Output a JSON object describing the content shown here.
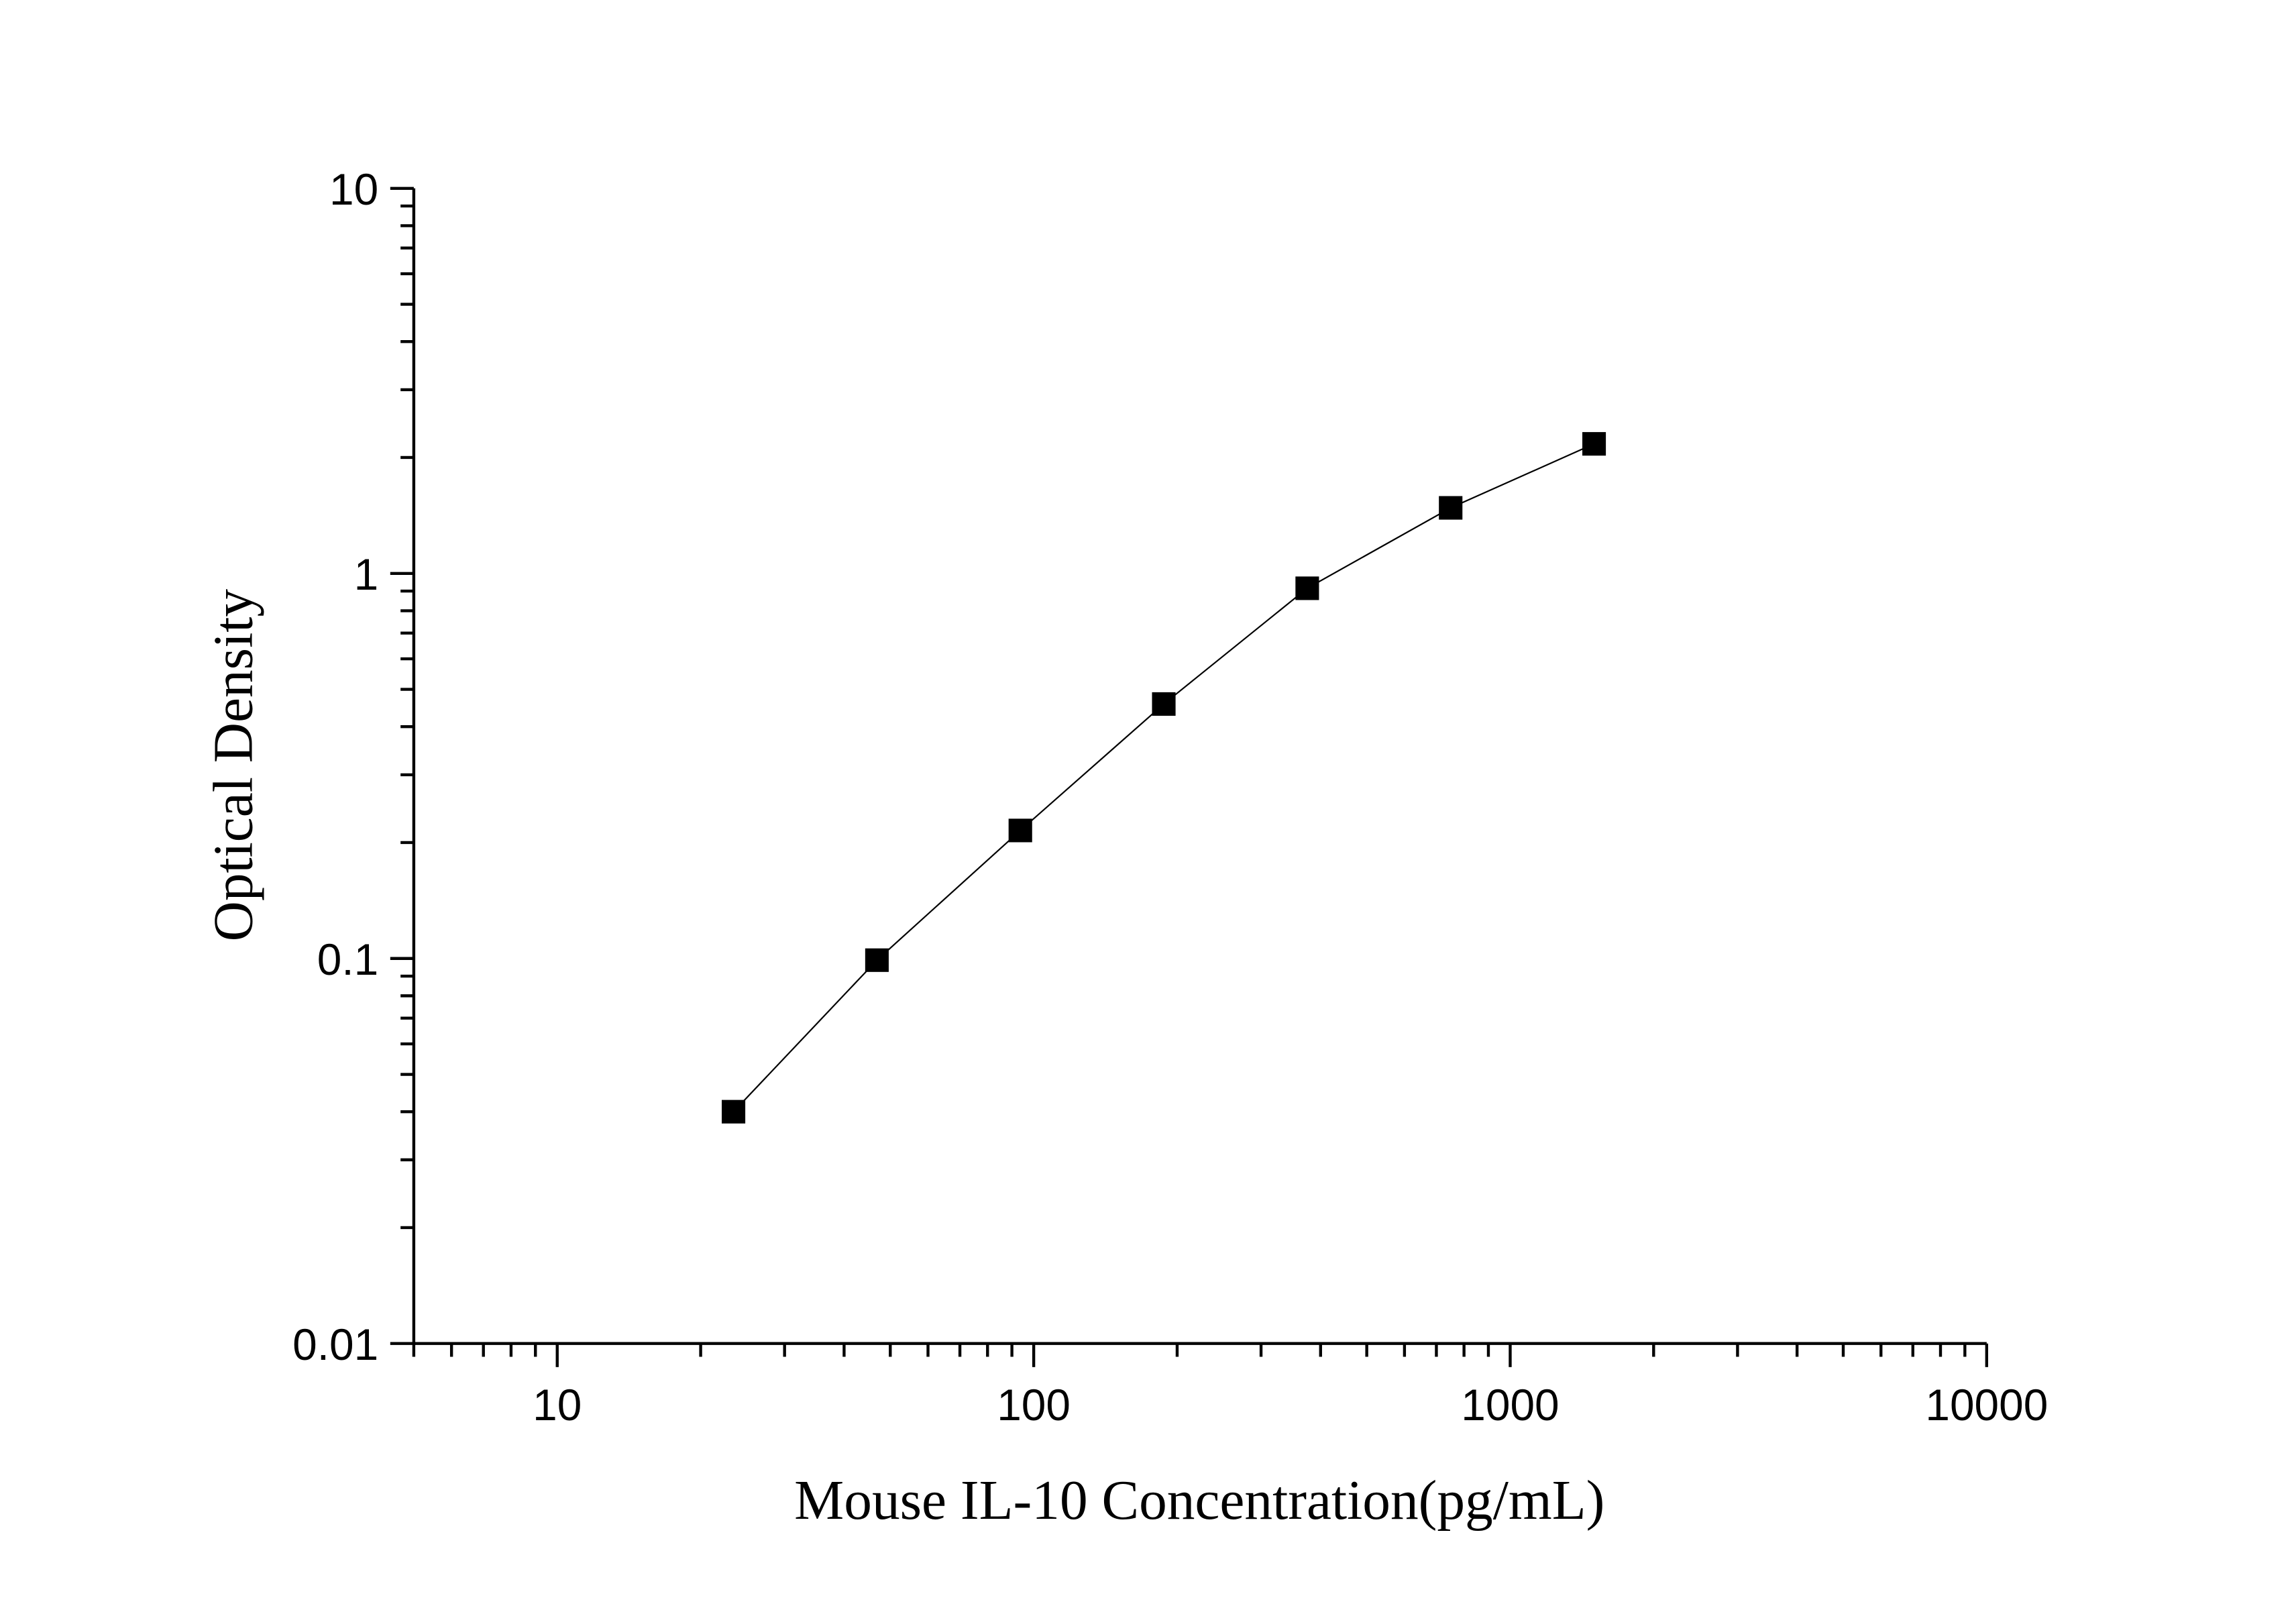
{
  "chart_data": {
    "type": "line",
    "title": "",
    "xlabel": "Mouse IL-10 Concentration(pg/mL)",
    "ylabel": "Optical Density",
    "xscale": "log",
    "yscale": "log",
    "xlim": [
      5,
      10000
    ],
    "ylim": [
      0.01,
      10
    ],
    "xticks": [
      10,
      100,
      1000,
      10000
    ],
    "xtick_labels": [
      "10",
      "100",
      "1000",
      "10000"
    ],
    "yticks": [
      0.01,
      0.1,
      1,
      10
    ],
    "ytick_labels": [
      "0.01",
      "0.1",
      "1",
      "10"
    ],
    "grid": false,
    "marker": "square",
    "color": "#000000",
    "series": [
      {
        "x": [
          23.44,
          46.88,
          93.75,
          187.5,
          375,
          750,
          1500
        ],
        "y": [
          0.04,
          0.099,
          0.215,
          0.458,
          0.915,
          1.48,
          2.17
        ]
      }
    ]
  }
}
